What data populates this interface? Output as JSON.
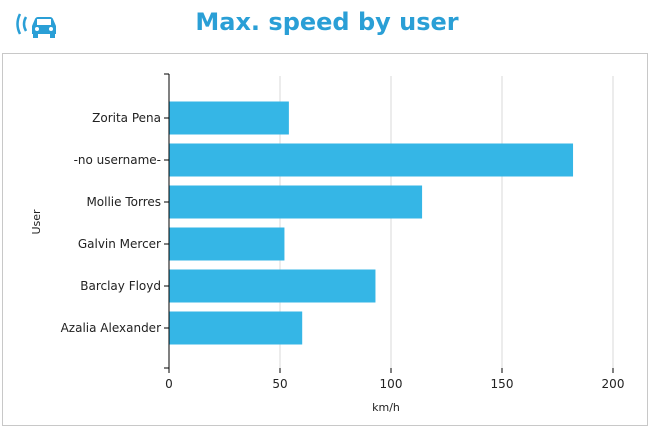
{
  "header": {
    "title": "Max. speed by user",
    "logo_icon": "car-signal-icon"
  },
  "chart_data": {
    "type": "bar",
    "orientation": "horizontal",
    "title": "Max. speed by user",
    "xlabel": "km/h",
    "ylabel": "User",
    "categories": [
      "Zorita Pena",
      "-no username-",
      "Mollie Torres",
      "Galvin Mercer",
      "Barclay Floyd",
      "Azalia Alexander"
    ],
    "values": [
      54,
      182,
      114,
      52,
      93,
      60
    ],
    "xlim": [
      0,
      200
    ],
    "xticks": [
      "0",
      "50",
      "100",
      "150",
      "200"
    ],
    "grid": "vertical",
    "bar_color": "#35b6e6"
  }
}
